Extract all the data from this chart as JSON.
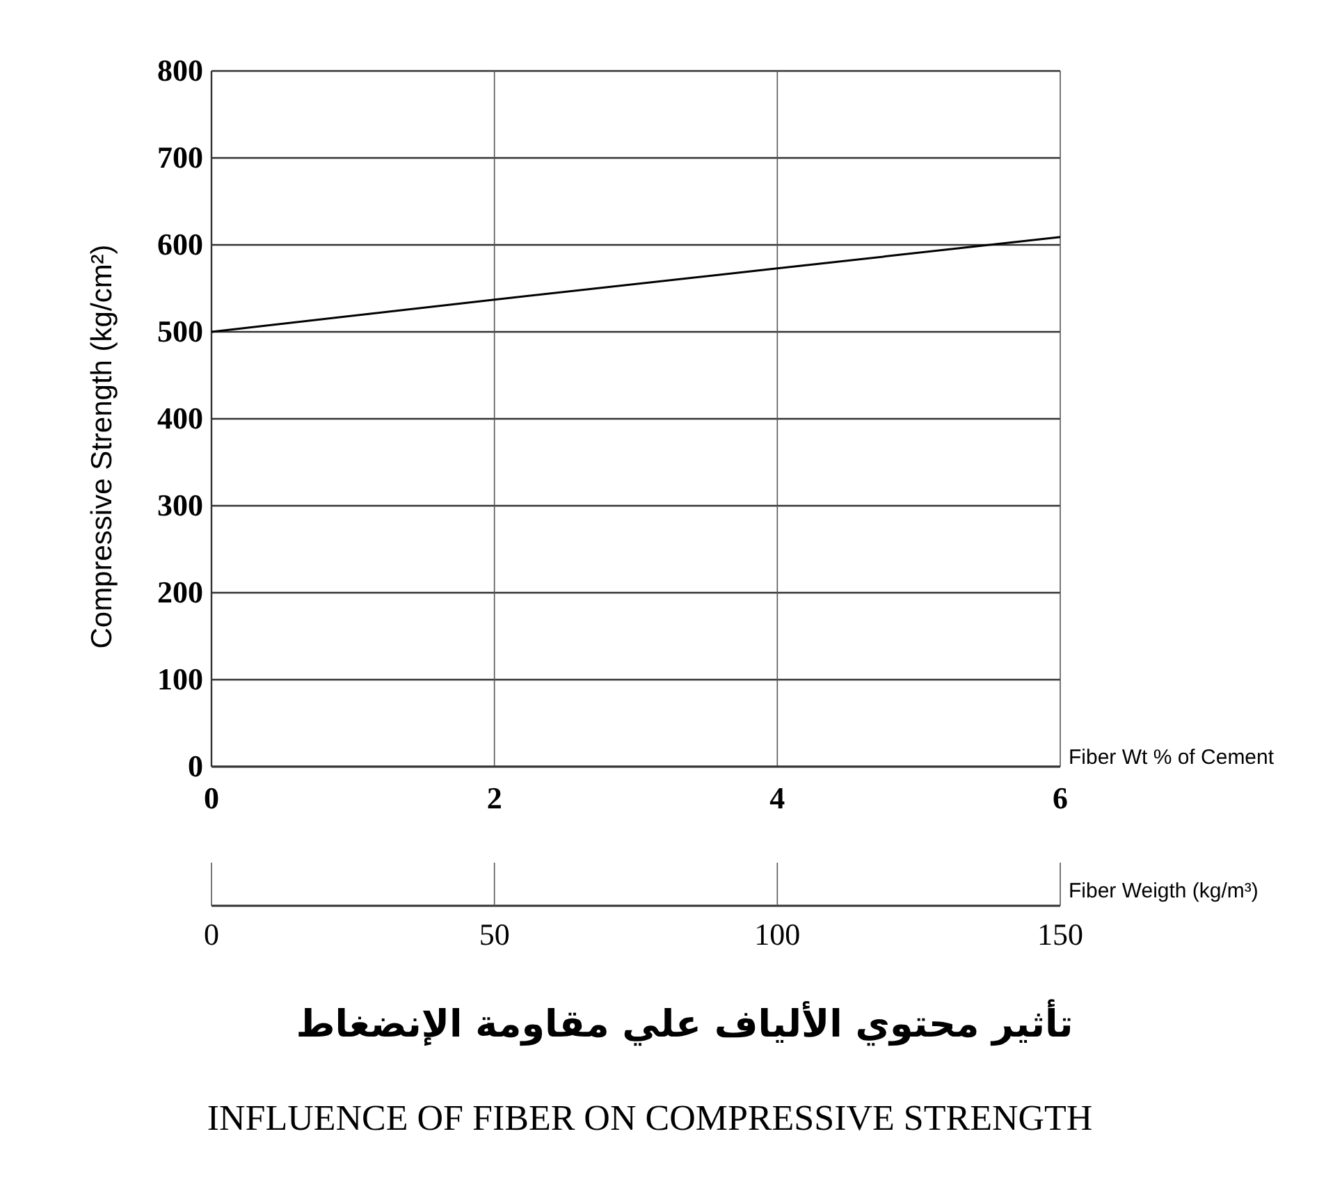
{
  "chart_data": {
    "type": "line",
    "title": "تأثير محتوي الألياف علي مقاومة الإنضغاط",
    "subtitle": "INFLUENCE OF FIBER ON COMPRESSIVE STRENGTH",
    "xlabel": "Fiber Wt % of Cement",
    "x2label": "Fiber Weigth (kg/m³)",
    "ylabel": "Compressive Strength (kg/cm²)",
    "x": [
      0,
      2,
      4,
      6
    ],
    "series": [
      {
        "color": "#000000",
        "values": [
          500,
          537,
          573,
          609
        ]
      }
    ],
    "xlim": [
      0,
      6
    ],
    "xticks": [
      0,
      2,
      4,
      6
    ],
    "x2lim": [
      0,
      150
    ],
    "x2ticks": [
      0,
      50,
      100,
      150
    ],
    "ylim": [
      0,
      800
    ],
    "yticks": [
      0,
      100,
      200,
      300,
      400,
      500,
      600,
      700,
      800
    ],
    "grid": true,
    "marker": "none",
    "line_style": "solid"
  }
}
